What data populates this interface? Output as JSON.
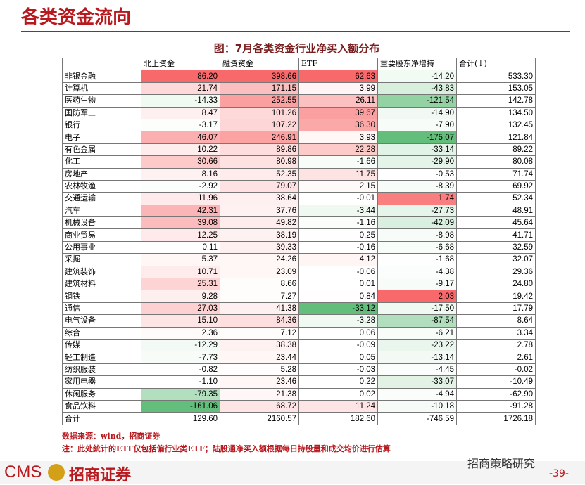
{
  "header": {
    "title": "各类资金流向"
  },
  "table": {
    "title": "图：7月各类资金行业净买入额分布",
    "columns": [
      "",
      "北上资金",
      "融资资金",
      "ETF",
      "重要股东净增持",
      "合计(↓)"
    ],
    "rows": [
      [
        "非银金融",
        "86.20",
        "398.66",
        "62.63",
        "-14.20",
        "533.30"
      ],
      [
        "计算机",
        "21.74",
        "171.15",
        "3.99",
        "-43.83",
        "153.05"
      ],
      [
        "医药生物",
        "-14.33",
        "252.55",
        "26.11",
        "-121.54",
        "142.78"
      ],
      [
        "国防军工",
        "8.47",
        "101.26",
        "39.67",
        "-14.90",
        "134.50"
      ],
      [
        "银行",
        "-3.17",
        "107.22",
        "36.30",
        "-7.90",
        "132.45"
      ],
      [
        "电子",
        "46.07",
        "246.91",
        "3.93",
        "-175.07",
        "121.84"
      ],
      [
        "有色金属",
        "10.22",
        "89.86",
        "22.28",
        "-33.14",
        "89.22"
      ],
      [
        "化工",
        "30.66",
        "80.98",
        "-1.66",
        "-29.90",
        "80.08"
      ],
      [
        "房地产",
        "8.16",
        "52.35",
        "11.75",
        "-0.53",
        "71.74"
      ],
      [
        "农林牧渔",
        "-2.92",
        "79.07",
        "2.15",
        "-8.39",
        "69.92"
      ],
      [
        "交通运输",
        "11.96",
        "38.64",
        "-0.01",
        "1.74",
        "52.34"
      ],
      [
        "汽车",
        "42.31",
        "37.76",
        "-3.44",
        "-27.73",
        "48.91"
      ],
      [
        "机械设备",
        "39.08",
        "49.82",
        "-1.16",
        "-42.09",
        "45.64"
      ],
      [
        "商业贸易",
        "12.25",
        "38.19",
        "0.25",
        "-8.98",
        "41.71"
      ],
      [
        "公用事业",
        "0.11",
        "39.33",
        "-0.16",
        "-6.68",
        "32.59"
      ],
      [
        "采掘",
        "5.37",
        "24.26",
        "4.12",
        "-1.68",
        "32.07"
      ],
      [
        "建筑装饰",
        "10.71",
        "23.09",
        "-0.06",
        "-4.38",
        "29.36"
      ],
      [
        "建筑材料",
        "25.31",
        "8.66",
        "0.01",
        "-9.17",
        "24.80"
      ],
      [
        "钢铁",
        "9.28",
        "7.27",
        "0.84",
        "2.03",
        "19.42"
      ],
      [
        "通信",
        "27.03",
        "41.38",
        "-33.12",
        "-17.50",
        "17.79"
      ],
      [
        "电气设备",
        "15.10",
        "84.36",
        "-3.28",
        "-87.54",
        "8.64"
      ],
      [
        "综合",
        "2.36",
        "7.12",
        "0.06",
        "-6.21",
        "3.34"
      ],
      [
        "传媒",
        "-12.29",
        "38.38",
        "-0.09",
        "-23.22",
        "2.78"
      ],
      [
        "轻工制造",
        "-7.73",
        "23.44",
        "0.05",
        "-13.14",
        "2.61"
      ],
      [
        "纺织服装",
        "-0.82",
        "5.28",
        "-0.03",
        "-4.45",
        "-0.02"
      ],
      [
        "家用电器",
        "-1.10",
        "23.46",
        "0.22",
        "-33.07",
        "-10.49"
      ],
      [
        "休闲服务",
        "-79.35",
        "21.38",
        "0.02",
        "-4.94",
        "-62.90"
      ],
      [
        "食品饮料",
        "-161.06",
        "68.72",
        "11.24",
        "-10.18",
        "-91.28"
      ],
      [
        "合计",
        "129.60",
        "2160.57",
        "182.60",
        "-746.59",
        "1726.18"
      ]
    ]
  },
  "notes": {
    "source": "数据来源：wind，招商证券",
    "note": "注：此处統计的ETF仅包括偏行业类ETF；陆股通净买入额根据每日持股量和成交均价进行估算"
  },
  "footer": {
    "logo": "CMS",
    "company": "招商证券",
    "wechat": "招商策略研究",
    "page": "-39-"
  }
}
